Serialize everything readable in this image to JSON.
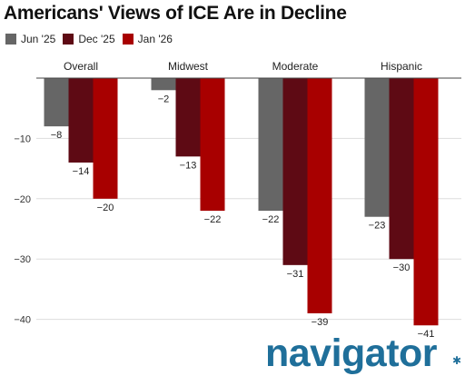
{
  "chart_data": {
    "type": "bar",
    "title": "Americans' Views of ICE Are in Decline",
    "categories": [
      "Overall",
      "Midwest",
      "Moderate",
      "Hispanic"
    ],
    "series": [
      {
        "name": "Jun '25",
        "color": "#666666",
        "values": [
          -8,
          -2,
          -22,
          -23
        ]
      },
      {
        "name": "Dec '25",
        "color": "#5e0a14",
        "values": [
          -14,
          -13,
          -31,
          -30
        ]
      },
      {
        "name": "Jan '26",
        "color": "#a80000",
        "values": [
          -20,
          -22,
          -39,
          -41
        ]
      }
    ],
    "yticks": [
      -10,
      -20,
      -30,
      -40
    ],
    "ylim": [
      -43,
      0
    ],
    "grid": true,
    "legend_position": "top-left"
  },
  "brand": {
    "name": "navigator",
    "color": "#1f6f9a"
  }
}
